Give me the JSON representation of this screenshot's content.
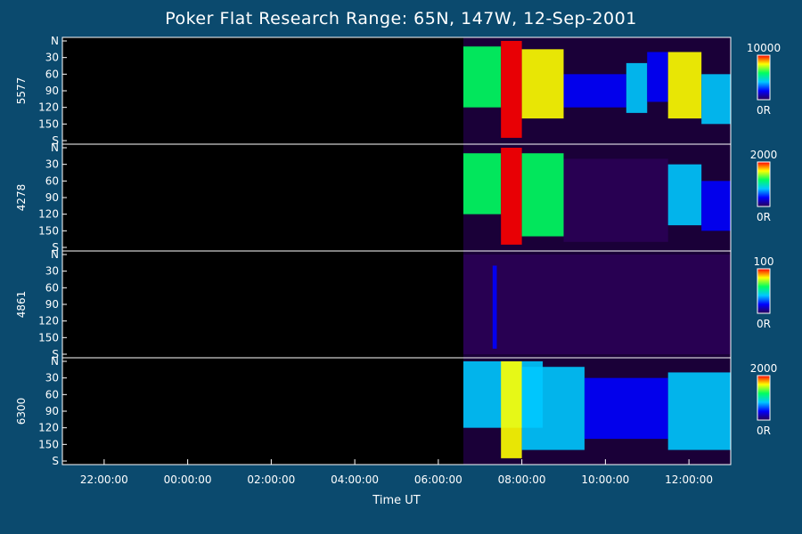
{
  "title": "Poker Flat Research Range: 65N, 147W, 12-Sep-2001",
  "xlabel": "Time UT",
  "chart_data": {
    "type": "heatmap",
    "title": "Poker Flat Research Range: 65N, 147W, 12-Sep-2001",
    "xlabel": "Time UT",
    "x_ticks": [
      "22:00:00",
      "00:00:00",
      "02:00:00",
      "04:00:00",
      "06:00:00",
      "08:00:00",
      "10:00:00",
      "12:00:00"
    ],
    "x_tick_hours": [
      22,
      24,
      26,
      28,
      30,
      32,
      34,
      36
    ],
    "xlim_hours": [
      21,
      37
    ],
    "y_tick_labels": [
      "N",
      "30",
      "60",
      "90",
      "120",
      "150",
      "S"
    ],
    "y_tick_values": [
      0,
      30,
      60,
      90,
      120,
      150,
      180
    ],
    "ylim": [
      0,
      180
    ],
    "colormap": [
      "#2a0055",
      "#0000ff",
      "#00c8ff",
      "#00ff60",
      "#ffff00",
      "#ff0000"
    ],
    "data_start_hour": 30.6,
    "panels": [
      {
        "name": "5577",
        "cbar_max": "10000",
        "cbar_min": "0R",
        "features": [
          {
            "t0": 30.6,
            "t1": 31.5,
            "lat0": 10,
            "lat1": 120,
            "level": 0.75
          },
          {
            "t0": 31.5,
            "t1": 32.0,
            "lat0": 0,
            "lat1": 175,
            "level": 1.0
          },
          {
            "t0": 32.0,
            "t1": 33.0,
            "lat0": 15,
            "lat1": 140,
            "level": 0.8
          },
          {
            "t0": 33.0,
            "t1": 34.5,
            "lat0": 60,
            "lat1": 120,
            "level": 0.35
          },
          {
            "t0": 34.5,
            "t1": 35.0,
            "lat0": 40,
            "lat1": 130,
            "level": 0.5
          },
          {
            "t0": 35.0,
            "t1": 35.5,
            "lat0": 20,
            "lat1": 110,
            "level": 0.3
          },
          {
            "t0": 35.5,
            "t1": 36.3,
            "lat0": 20,
            "lat1": 140,
            "level": 0.85
          },
          {
            "t0": 36.3,
            "t1": 37.0,
            "lat0": 60,
            "lat1": 150,
            "level": 0.4
          }
        ]
      },
      {
        "name": "4278",
        "cbar_max": "2000",
        "cbar_min": "0R",
        "features": [
          {
            "t0": 30.6,
            "t1": 31.5,
            "lat0": 10,
            "lat1": 120,
            "level": 0.7
          },
          {
            "t0": 31.5,
            "t1": 32.0,
            "lat0": 0,
            "lat1": 175,
            "level": 1.0
          },
          {
            "t0": 32.0,
            "t1": 33.0,
            "lat0": 10,
            "lat1": 160,
            "level": 0.75
          },
          {
            "t0": 33.0,
            "t1": 35.5,
            "lat0": 20,
            "lat1": 170,
            "level": 0.15
          },
          {
            "t0": 35.5,
            "t1": 36.3,
            "lat0": 30,
            "lat1": 140,
            "level": 0.5
          },
          {
            "t0": 36.3,
            "t1": 37.0,
            "lat0": 60,
            "lat1": 150,
            "level": 0.2
          }
        ]
      },
      {
        "name": "4861",
        "cbar_max": "100",
        "cbar_min": "0R",
        "features": [
          {
            "t0": 30.6,
            "t1": 37.0,
            "lat0": 0,
            "lat1": 180,
            "level": 0.08
          },
          {
            "t0": 31.3,
            "t1": 31.4,
            "lat0": 20,
            "lat1": 170,
            "level": 0.3
          }
        ]
      },
      {
        "name": "6300",
        "cbar_max": "2000",
        "cbar_min": "0R",
        "features": [
          {
            "t0": 30.6,
            "t1": 32.5,
            "lat0": 0,
            "lat1": 120,
            "level": 0.45
          },
          {
            "t0": 31.5,
            "t1": 32.0,
            "lat0": 0,
            "lat1": 175,
            "level": 0.95
          },
          {
            "t0": 32.0,
            "t1": 33.5,
            "lat0": 10,
            "lat1": 160,
            "level": 0.55
          },
          {
            "t0": 33.5,
            "t1": 35.5,
            "lat0": 30,
            "lat1": 140,
            "level": 0.35
          },
          {
            "t0": 35.5,
            "t1": 37.0,
            "lat0": 20,
            "lat1": 160,
            "level": 0.45
          }
        ]
      }
    ]
  }
}
